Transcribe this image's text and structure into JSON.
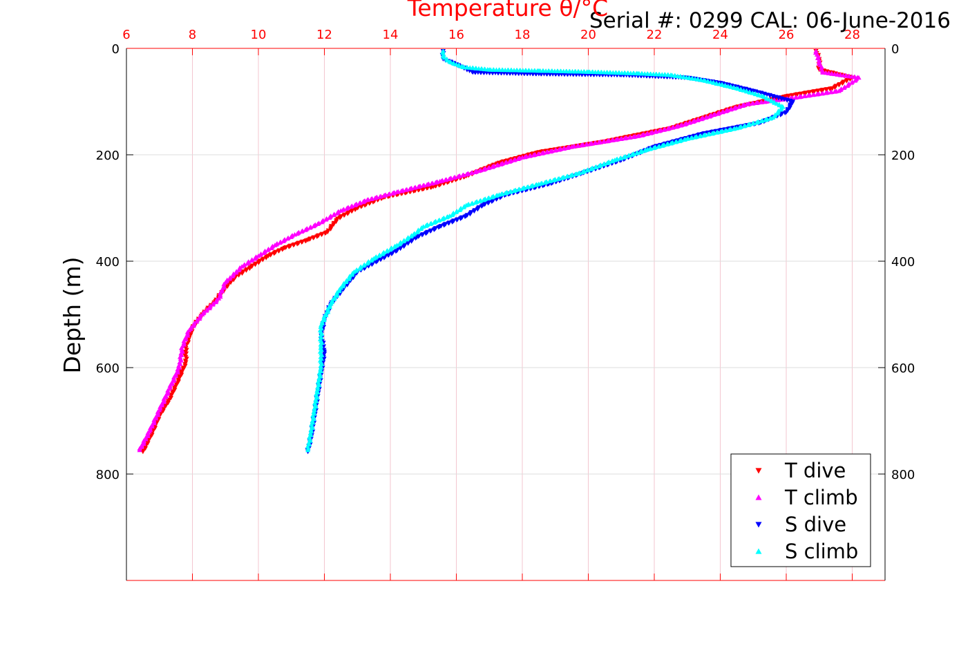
{
  "serial_label": "Serial #: 0299 CAL: 06-June-2016",
  "chart_data": {
    "type": "scatter",
    "title": "Temperature θ/°C",
    "ylabel": "Depth (m)",
    "xlabel": "",
    "xlim": [
      6,
      29
    ],
    "ylim": [
      0,
      1000
    ],
    "y_reversed": true,
    "x_ticks": [
      6,
      8,
      10,
      12,
      14,
      16,
      18,
      20,
      22,
      24,
      26,
      28
    ],
    "y_ticks": [
      0,
      200,
      400,
      600,
      800
    ],
    "grid": true,
    "legend_position": "bottom-right",
    "series": [
      {
        "name": "T dive",
        "color": "#ff0000",
        "marker": "triangle-down",
        "points": [
          [
            26.9,
            5
          ],
          [
            27.0,
            20
          ],
          [
            27.0,
            40
          ],
          [
            28.0,
            55
          ],
          [
            27.4,
            75
          ],
          [
            26.0,
            90
          ],
          [
            24.5,
            110
          ],
          [
            23.5,
            130
          ],
          [
            22.5,
            150
          ],
          [
            20.5,
            175
          ],
          [
            18.5,
            195
          ],
          [
            17.3,
            215
          ],
          [
            16.3,
            240
          ],
          [
            15.3,
            260
          ],
          [
            13.8,
            280
          ],
          [
            13.0,
            300
          ],
          [
            12.4,
            320
          ],
          [
            12.1,
            345
          ],
          [
            11.5,
            360
          ],
          [
            10.8,
            375
          ],
          [
            10.3,
            390
          ],
          [
            9.8,
            410
          ],
          [
            9.3,
            430
          ],
          [
            9.0,
            450
          ],
          [
            8.7,
            475
          ],
          [
            8.3,
            500
          ],
          [
            8.0,
            525
          ],
          [
            7.9,
            545
          ],
          [
            7.8,
            560
          ],
          [
            7.8,
            590
          ],
          [
            7.6,
            620
          ],
          [
            7.3,
            660
          ],
          [
            7.0,
            690
          ],
          [
            6.8,
            720
          ],
          [
            6.6,
            745
          ],
          [
            6.5,
            758
          ]
        ]
      },
      {
        "name": "T climb",
        "color": "#ff00ff",
        "marker": "triangle-up",
        "points": [
          [
            26.9,
            5
          ],
          [
            27.0,
            25
          ],
          [
            27.1,
            45
          ],
          [
            28.2,
            55
          ],
          [
            27.6,
            80
          ],
          [
            26.0,
            95
          ],
          [
            24.8,
            105
          ],
          [
            23.8,
            125
          ],
          [
            22.8,
            145
          ],
          [
            21.5,
            165
          ],
          [
            19.5,
            185
          ],
          [
            18.0,
            205
          ],
          [
            16.7,
            230
          ],
          [
            15.5,
            250
          ],
          [
            14.2,
            270
          ],
          [
            13.3,
            285
          ],
          [
            12.5,
            305
          ],
          [
            11.8,
            330
          ],
          [
            11.1,
            350
          ],
          [
            10.5,
            370
          ],
          [
            10.0,
            390
          ],
          [
            9.5,
            410
          ],
          [
            9.0,
            440
          ],
          [
            8.8,
            470
          ],
          [
            8.3,
            500
          ],
          [
            7.9,
            530
          ],
          [
            7.7,
            560
          ],
          [
            7.6,
            600
          ],
          [
            7.3,
            640
          ],
          [
            7.0,
            680
          ],
          [
            6.7,
            720
          ],
          [
            6.4,
            755
          ]
        ]
      },
      {
        "name": "S dive",
        "color": "#0000ff",
        "marker": "triangle-down",
        "points": [
          [
            15.6,
            5
          ],
          [
            15.6,
            20
          ],
          [
            16.0,
            30
          ],
          [
            16.5,
            45
          ],
          [
            18.5,
            48
          ],
          [
            21.0,
            50
          ],
          [
            23.0,
            55
          ],
          [
            24.0,
            65
          ],
          [
            25.0,
            80
          ],
          [
            26.2,
            100
          ],
          [
            26.0,
            120
          ],
          [
            25.2,
            140
          ],
          [
            23.5,
            160
          ],
          [
            22.0,
            185
          ],
          [
            21.0,
            210
          ],
          [
            19.8,
            235
          ],
          [
            18.8,
            255
          ],
          [
            17.5,
            275
          ],
          [
            16.8,
            295
          ],
          [
            16.3,
            315
          ],
          [
            15.5,
            335
          ],
          [
            14.8,
            355
          ],
          [
            14.2,
            380
          ],
          [
            13.6,
            400
          ],
          [
            13.0,
            420
          ],
          [
            12.6,
            450
          ],
          [
            12.2,
            480
          ],
          [
            12.0,
            510
          ],
          [
            11.9,
            540
          ],
          [
            12.0,
            570
          ],
          [
            11.9,
            610
          ],
          [
            11.8,
            650
          ],
          [
            11.7,
            690
          ],
          [
            11.6,
            730
          ],
          [
            11.5,
            758
          ]
        ]
      },
      {
        "name": "S climb",
        "color": "#00ffff",
        "marker": "triangle-up",
        "points": [
          [
            15.6,
            5
          ],
          [
            15.6,
            15
          ],
          [
            15.8,
            25
          ],
          [
            16.2,
            35
          ],
          [
            17.0,
            40
          ],
          [
            18.5,
            42
          ],
          [
            20.0,
            44
          ],
          [
            21.5,
            47
          ],
          [
            22.5,
            50
          ],
          [
            23.5,
            60
          ],
          [
            24.5,
            75
          ],
          [
            25.3,
            90
          ],
          [
            25.9,
            110
          ],
          [
            25.6,
            130
          ],
          [
            24.5,
            150
          ],
          [
            23.0,
            170
          ],
          [
            21.8,
            190
          ],
          [
            20.8,
            210
          ],
          [
            19.7,
            235
          ],
          [
            18.5,
            255
          ],
          [
            17.3,
            275
          ],
          [
            16.3,
            295
          ],
          [
            15.8,
            315
          ],
          [
            15.0,
            335
          ],
          [
            14.7,
            350
          ],
          [
            14.2,
            370
          ],
          [
            13.5,
            395
          ],
          [
            12.9,
            420
          ],
          [
            12.5,
            450
          ],
          [
            12.2,
            480
          ],
          [
            11.9,
            520
          ],
          [
            11.9,
            560
          ],
          [
            11.9,
            600
          ],
          [
            11.8,
            640
          ],
          [
            11.7,
            680
          ],
          [
            11.6,
            720
          ],
          [
            11.5,
            755
          ]
        ]
      }
    ]
  }
}
